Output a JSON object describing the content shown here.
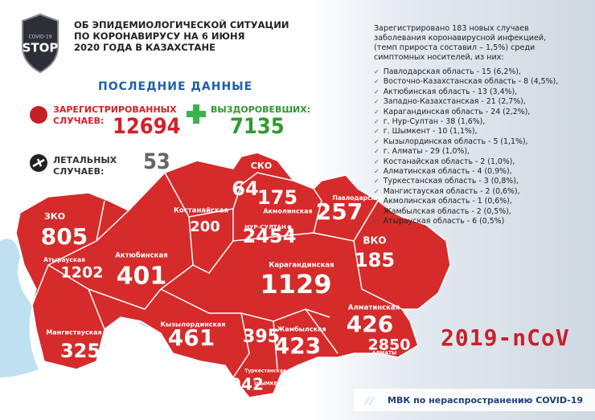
{
  "header": {
    "logo_top": "COVID-19",
    "logo_text": "STOP",
    "title": [
      "ОБ ЭПИДЕМИОЛОГИЧЕСКОЙ СИТУАЦИИ",
      "ПО КОРОНАВИРУСУ НА 6 ИЮНЯ",
      "2020 ГОДА В КАЗАХСТАНЕ"
    ]
  },
  "latest": {
    "heading": "ПОСЛЕДНИЕ ДАННЫЕ",
    "registered": {
      "label": [
        "ЗАРЕГИСТРИРОВАННЫХ",
        "СЛУЧАЕВ:"
      ],
      "value": 12694
    },
    "recovered": {
      "label": "ВЫЗДОРОВЕВШИХ:",
      "value": 7135
    },
    "deaths": {
      "label": [
        "ЛЕТАЛЬНЫХ",
        "СЛУЧАЕВ:"
      ],
      "value": 53
    }
  },
  "summary": {
    "intro": [
      "Зарегистрировано 183 новых случаев",
      "заболевания коронавирусной инфекцией,",
      "(темп прироста составил – 1,5%) среди",
      "симптомных носителей, из них:"
    ],
    "items": [
      "Павлодарская область - 15 (6,2%),",
      "Восточно-Казахстанская область - 8 (4,5%),",
      "Актюбинская область - 13 (3,4%),",
      "Западно-Казахстанская - 21 (2,7%),",
      "Карагандинская область - 24 (2,2%),",
      "г. Нур-Султан - 38 (1,6%),",
      "г. Шымкент - 10 (1,1%),",
      "Кызылординская область - 5 (1,1%),",
      "г. Алматы - 29 (1,0%),",
      "Костанайская область - 2 (1,0%),",
      "Алматинская область - 4 (0,9%),",
      "Туркестанская область - 3 (0,8%),",
      "Мангистауская область - 2 (0,6%),",
      "Акмолинская область - 1 (0,6%),",
      "Жамбылская область - 2 (0,5%),",
      "Атырауская область - 6 (0,5%)"
    ]
  },
  "map": {
    "regions": [
      {
        "name": "ЗКО",
        "value": 805
      },
      {
        "name": "Атырауская",
        "value": 1202
      },
      {
        "name": "Актюбинская",
        "value": 401
      },
      {
        "name": "Мангистауская",
        "value": 325
      },
      {
        "name": "Костанайская",
        "value": 200
      },
      {
        "name": "СКО",
        "value": 64
      },
      {
        "name": "Акмолинская",
        "value": 175
      },
      {
        "name": "Павлодарская",
        "value": 257
      },
      {
        "name": "НУР-СУЛТАН",
        "value": 2454
      },
      {
        "name": "ВКО",
        "value": 185
      },
      {
        "name": "Карагандинская",
        "value": 1129
      },
      {
        "name": "Кызылординская",
        "value": 461
      },
      {
        "name": "Туркестанская",
        "value": 395
      },
      {
        "name": "ШЫМКЕНТ",
        "value": 942
      },
      {
        "name": "Жамбылская",
        "value": 423
      },
      {
        "name": "Алматинская",
        "value": 426
      },
      {
        "name": "АЛМАТЫ",
        "value": 2850
      }
    ]
  },
  "badge": "2019-nCoV",
  "footer": "МВК по нераспространению COVID-19"
}
